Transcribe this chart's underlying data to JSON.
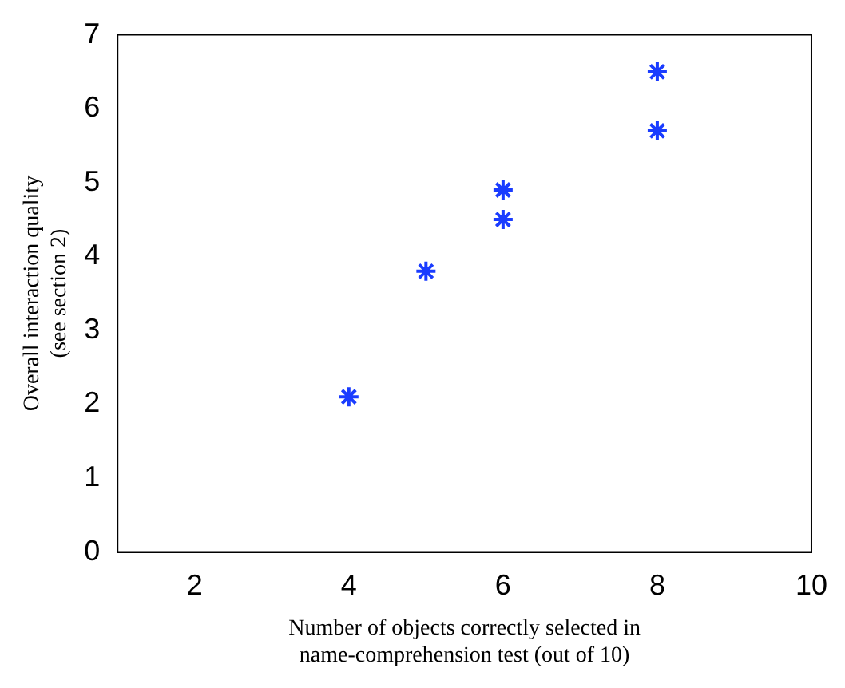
{
  "chart_data": {
    "type": "scatter",
    "xlabel": "Number of objects correctly selected in\nname-comprehension test (out of 10)",
    "ylabel": "Overall interaction quality\n(see section 2)",
    "x": [
      4,
      5,
      6,
      6,
      8,
      8
    ],
    "values": [
      2.1,
      3.8,
      4.5,
      4.9,
      5.7,
      6.5
    ],
    "color": "#1a3cff",
    "marker": "cross",
    "grid": false,
    "legend": false,
    "xlim": [
      1,
      10
    ],
    "xticks": [
      2,
      4,
      6,
      8,
      10
    ],
    "ylim": [
      0,
      7
    ],
    "yticks": [
      0,
      1,
      2,
      3,
      4,
      5,
      6,
      7
    ]
  }
}
